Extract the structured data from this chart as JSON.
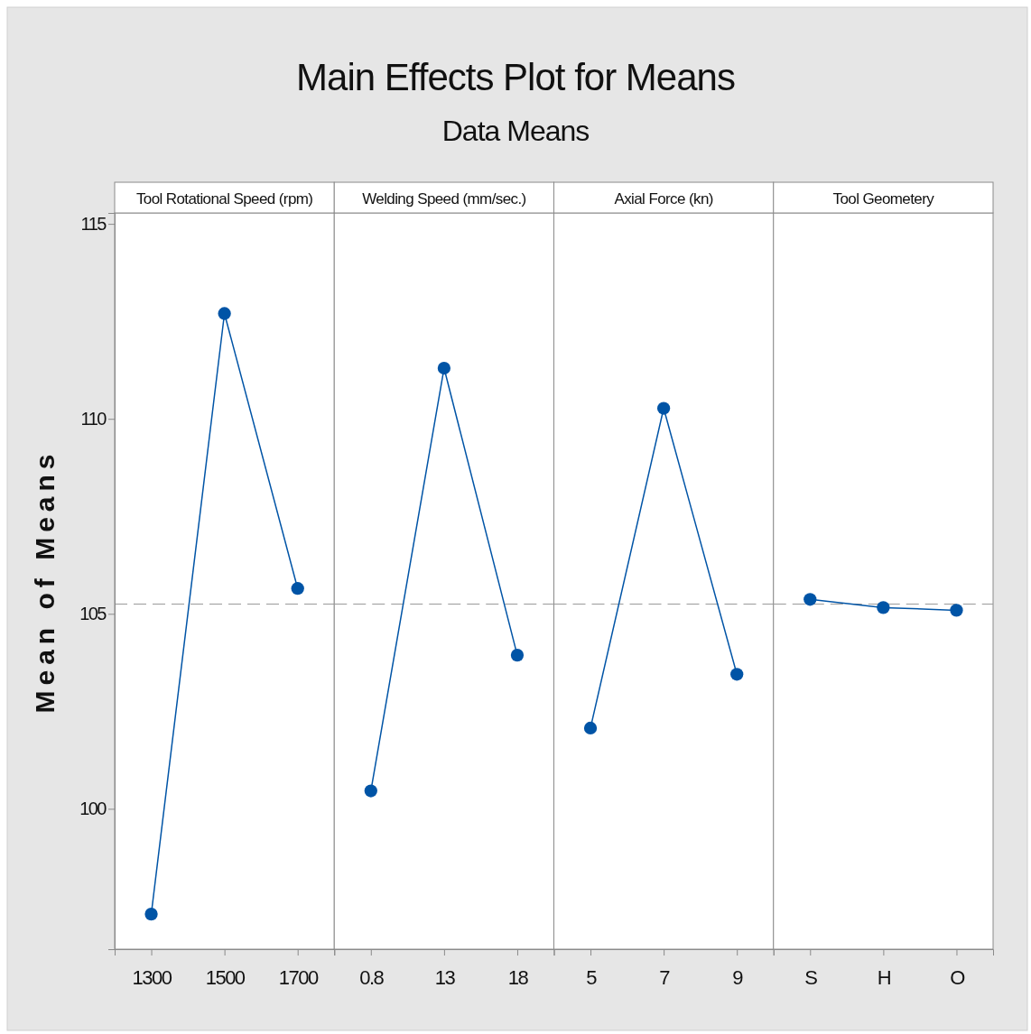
{
  "chart_data": [
    {
      "type": "line",
      "title": "Tool Rotational Speed (rpm)",
      "annotations": [
        "Main Effects Plot for Means",
        "Data Means"
      ],
      "ylabel": "Mean of Means",
      "categories": [
        "1300",
        "1500",
        "1700"
      ],
      "series": [
        {
          "color": "#0054a6",
          "values": [
            97.3,
            112.7,
            105.65
          ]
        }
      ],
      "ylim": [
        96.4,
        115.28
      ],
      "yticks": [
        100,
        105,
        110,
        115
      ],
      "marker": "circle",
      "line_style": "solid",
      "ref_lines": [
        {
          "axis": "y",
          "value": 105.25,
          "color": "#9a9a9a",
          "line_style": "dashed"
        }
      ]
    },
    {
      "type": "line",
      "title": "Welding Speed (mm/sec.)",
      "categories": [
        "0.8",
        "13",
        "18"
      ],
      "series": [
        {
          "color": "#0054a6",
          "values": [
            100.46,
            111.3,
            103.94
          ]
        }
      ],
      "ylim": [
        96.4,
        115.28
      ],
      "yticks": [
        100,
        105,
        110,
        115
      ],
      "tick_labels": "x",
      "marker": "circle",
      "line_style": "solid",
      "ref_lines": [
        {
          "axis": "y",
          "value": 105.25,
          "color": "#9a9a9a",
          "line_style": "dashed"
        }
      ]
    },
    {
      "type": "line",
      "title": "Axial Force (kn)",
      "categories": [
        "5",
        "7",
        "9"
      ],
      "series": [
        {
          "color": "#0054a6",
          "values": [
            102.07,
            110.27,
            103.45
          ]
        }
      ],
      "ylim": [
        96.4,
        115.28
      ],
      "yticks": [
        100,
        105,
        110,
        115
      ],
      "tick_labels": "x",
      "marker": "circle",
      "line_style": "solid",
      "ref_lines": [
        {
          "axis": "y",
          "value": 105.25,
          "color": "#9a9a9a",
          "line_style": "dashed"
        }
      ]
    },
    {
      "type": "line",
      "title": "Tool Geometery",
      "categories": [
        "S",
        "H",
        "O"
      ],
      "series": [
        {
          "color": "#0054a6",
          "values": [
            105.37,
            105.16,
            105.09
          ]
        }
      ],
      "ylim": [
        96.4,
        115.28
      ],
      "yticks": [
        100,
        105,
        110,
        115
      ],
      "tick_labels": "x",
      "marker": "circle",
      "line_style": "solid",
      "ref_lines": [
        {
          "axis": "y",
          "value": 105.25,
          "color": "#9a9a9a",
          "line_style": "dashed"
        }
      ]
    }
  ]
}
